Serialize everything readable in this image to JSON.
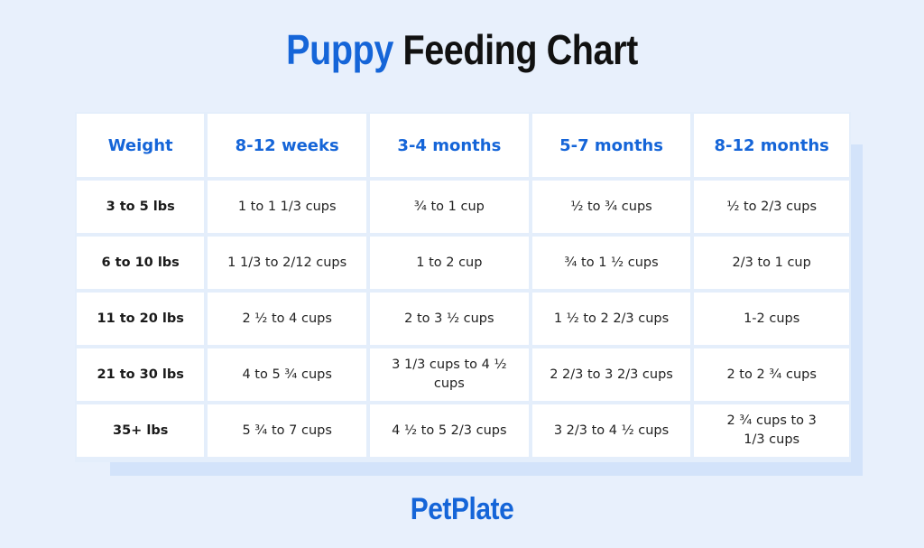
{
  "title": {
    "accent": "Puppy",
    "rest": "Feeding Chart"
  },
  "logo": "PetPlate",
  "chart_data": {
    "type": "table",
    "title": "Puppy Feeding Chart",
    "columns": [
      "Weight",
      "8-12 weeks",
      "3-4 months",
      "5-7 months",
      "8-12 months"
    ],
    "rows": [
      [
        "3 to 5 lbs",
        "1 to 1 1/3 cups",
        "¾ to 1 cup",
        "½ to ¾ cups",
        "½ to 2/3 cups"
      ],
      [
        "6 to 10 lbs",
        "1 1/3 to 2/12 cups",
        "1 to 2 cup",
        "¾ to 1 ½ cups",
        "2/3 to 1 cup"
      ],
      [
        "11 to 20 lbs",
        "2 ½ to 4 cups",
        "2 to 3 ½ cups",
        "1 ½ to 2 2/3 cups",
        "1-2 cups"
      ],
      [
        "21 to 30 lbs",
        "4 to 5 ¾ cups",
        "3 1/3 cups to 4 ½ cups",
        "2 2/3 to 3 2/3 cups",
        "2 to 2 ¾ cups"
      ],
      [
        "35+ lbs",
        "5 ¾ to 7 cups",
        "4 ½ to 5 2/3 cups",
        "3 2/3 to 4 ½ cups",
        "2 ¾ cups to 3 1/3 cups"
      ]
    ],
    "colors": {
      "accent": "#1565d8",
      "background": "#e8f0fc",
      "cell": "#ffffff"
    }
  }
}
